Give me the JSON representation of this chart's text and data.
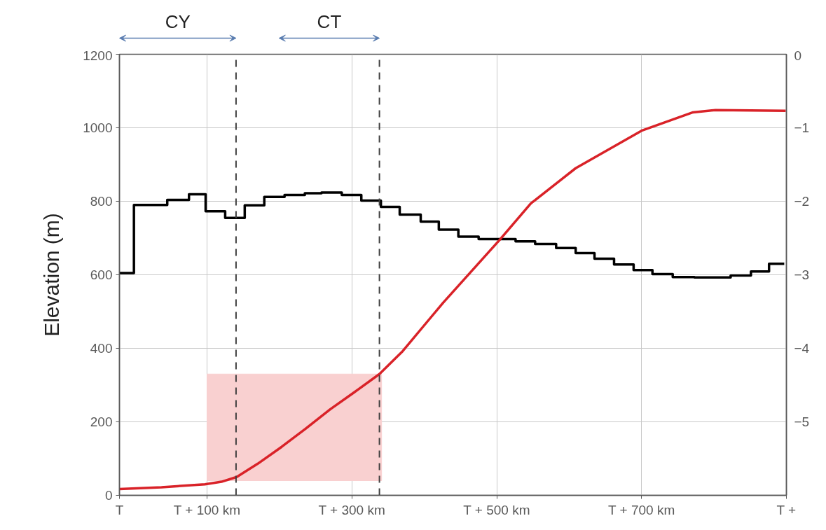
{
  "chart_data": {
    "type": "line",
    "ylabel": "Elevation (m)",
    "xlim": [
      -21,
      900
    ],
    "xticks": [
      {
        "value": -21,
        "label": "T"
      },
      {
        "value": 100,
        "label": "T + 100 km"
      },
      {
        "value": 300,
        "label": "T + 300 km"
      },
      {
        "value": 500,
        "label": "T + 500 km"
      },
      {
        "value": 700,
        "label": "T + 700 km"
      },
      {
        "value": 900,
        "label": "T +"
      }
    ],
    "ylim": [
      0,
      1200
    ],
    "yticks": [
      0,
      200,
      400,
      600,
      800,
      1000,
      1200
    ],
    "y2lim": [
      -6,
      0
    ],
    "y2ticks": [
      -5,
      -4,
      -3,
      -2,
      -1,
      0
    ],
    "grid": true,
    "series": [
      {
        "type": "area",
        "color": "#f9d0d0",
        "x": [
          100,
          341
        ],
        "values": [
          null,
          null
        ],
        "lower": [
          40,
          40
        ],
        "upper": [
          330,
          330
        ]
      },
      {
        "type": "step",
        "color": "#000000",
        "x": [
          -21,
          -1,
          45,
          75,
          98,
          125,
          152,
          179,
          207,
          235,
          258,
          286,
          313,
          340,
          366,
          395,
          420,
          447,
          475,
          526,
          553,
          582,
          609,
          635,
          662,
          689,
          715,
          743,
          773,
          823,
          851,
          876,
          897
        ],
        "values": [
          605,
          790,
          804,
          819,
          773,
          755,
          789,
          812,
          817,
          822,
          824,
          817,
          802,
          785,
          764,
          745,
          723,
          704,
          697,
          691,
          684,
          673,
          659,
          644,
          628,
          613,
          602,
          594,
          593,
          598,
          609,
          630,
          630
        ]
      },
      {
        "color": "#d92228",
        "x": [
          -21,
          37,
          97,
          120,
          141,
          170,
          203,
          236,
          270,
          303,
          338,
          370,
          403,
          426,
          504,
          547,
          609,
          700,
          771,
          802,
          899
        ],
        "values": [
          17,
          22,
          30,
          37,
          50,
          86,
          132,
          181,
          234,
          280,
          330,
          392,
          470,
          524,
          695,
          794,
          890,
          992,
          1042,
          1048,
          1046
        ]
      }
    ],
    "ref_lines": [
      {
        "axis": "x",
        "value": 140,
        "color": "#404040",
        "line_style": "dashed"
      },
      {
        "axis": "x",
        "value": 338,
        "color": "#404040",
        "line_style": "dashed"
      }
    ],
    "annotations": [
      "CY",
      "CT"
    ]
  }
}
